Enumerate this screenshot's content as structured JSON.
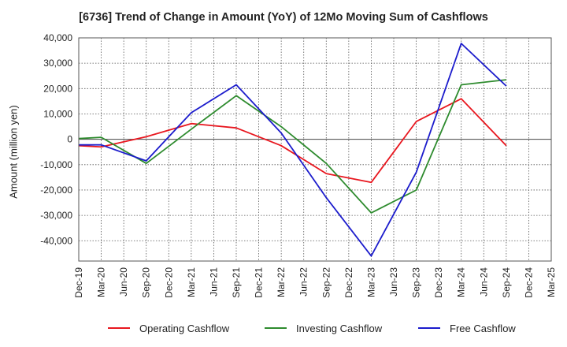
{
  "chart_data": {
    "type": "line",
    "title": "[6736]  Trend of Change in Amount (YoY) of 12Mo Moving Sum of Cashflows",
    "xlabel": "",
    "ylabel": "Amount (million yen)",
    "ylim": [
      -48000,
      40000
    ],
    "yticks": [
      40000,
      30000,
      20000,
      10000,
      0,
      -10000,
      -20000,
      -30000,
      -40000
    ],
    "ytick_labels": [
      "40,000",
      "30,000",
      "20,000",
      "10,000",
      "0",
      "-10,000",
      "-20,000",
      "-30,000",
      "-40,000"
    ],
    "categories": [
      "Dec-19",
      "Mar-20",
      "Jun-20",
      "Sep-20",
      "Dec-20",
      "Mar-21",
      "Jun-21",
      "Sep-21",
      "Dec-21",
      "Mar-22",
      "Jun-22",
      "Sep-22",
      "Dec-22",
      "Mar-23",
      "Jun-23",
      "Sep-23",
      "Dec-23",
      "Mar-24",
      "Jun-24",
      "Sep-24",
      "Dec-24",
      "Mar-25"
    ],
    "grid": true,
    "legend_position": "bottom",
    "series": [
      {
        "name": "Operating Cashflow",
        "color": "#e8171f",
        "values": [
          -2500,
          -3000,
          null,
          1000,
          null,
          6200,
          null,
          4500,
          null,
          -2500,
          null,
          -13500,
          null,
          -17000,
          null,
          7000,
          null,
          16000,
          null,
          -2500,
          null,
          null
        ]
      },
      {
        "name": "Investing Cashflow",
        "color": "#2e8b2e",
        "values": [
          300,
          800,
          null,
          -9500,
          null,
          4000,
          null,
          17200,
          null,
          5000,
          null,
          -9500,
          null,
          -29000,
          null,
          -20000,
          null,
          21500,
          null,
          23500,
          null,
          null
        ]
      },
      {
        "name": "Free Cashflow",
        "color": "#1c1ccc",
        "values": [
          -2200,
          -2200,
          null,
          -8500,
          null,
          10500,
          null,
          21500,
          null,
          2500,
          null,
          -23000,
          null,
          -46000,
          null,
          -13000,
          null,
          37800,
          null,
          21000,
          null,
          null
        ]
      }
    ]
  }
}
